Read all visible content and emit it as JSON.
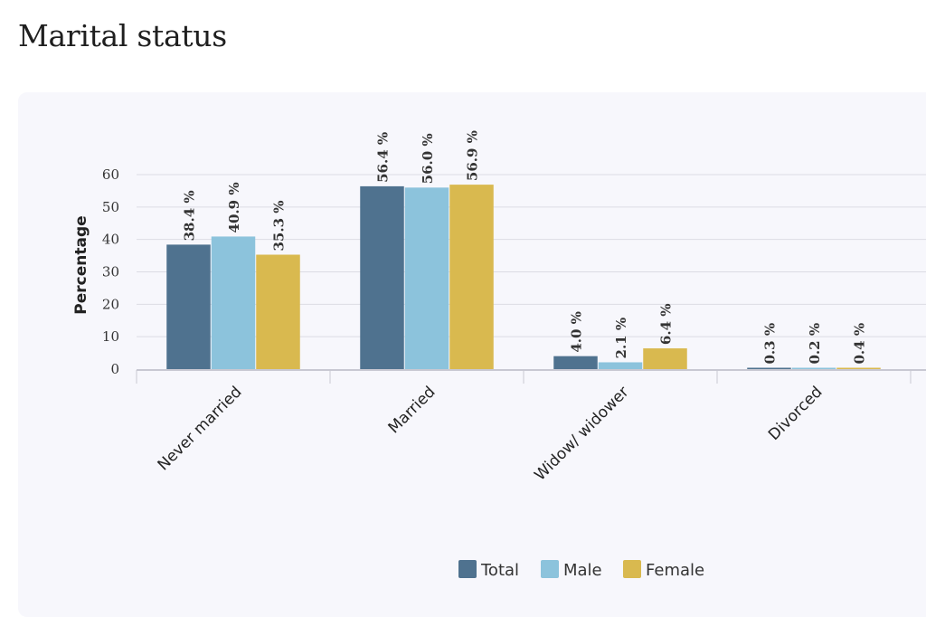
{
  "page": {
    "title": "Marital status"
  },
  "chart_data": {
    "type": "bar",
    "categories": [
      "Never married",
      "Married",
      "Widow/ widower",
      "Divorced"
    ],
    "series": [
      {
        "name": "Total",
        "color": "#4f728f",
        "values": [
          38.4,
          56.4,
          4.0,
          0.3
        ]
      },
      {
        "name": "Male",
        "color": "#8cc3dc",
        "values": [
          40.9,
          56.0,
          2.1,
          0.2
        ]
      },
      {
        "name": "Female",
        "color": "#d9b94f",
        "values": [
          35.3,
          56.9,
          6.4,
          0.4
        ]
      }
    ],
    "data_labels": [
      [
        "38.4 %",
        "56.4 %",
        "4.0 %",
        "0.3 %"
      ],
      [
        "40.9 %",
        "56.0 %",
        "2.1 %",
        "0.2 %"
      ],
      [
        "35.3 %",
        "56.9 %",
        "6.4 %",
        "0.4 %"
      ]
    ],
    "ylabel": "Percentage",
    "xlabel": "",
    "ylim": [
      0,
      60
    ],
    "yticks": [
      0,
      10,
      20,
      30,
      40,
      50,
      60
    ],
    "grid": true,
    "legend_position": "bottom"
  }
}
